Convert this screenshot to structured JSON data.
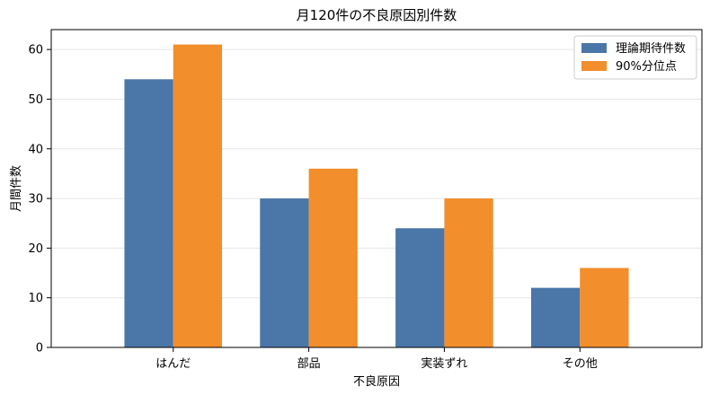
{
  "chart_data": {
    "type": "bar",
    "title": "月120件の不良原因別件数",
    "xlabel": "不良原因",
    "ylabel": "月間件数",
    "categories": [
      "はんだ",
      "部品",
      "実装ずれ",
      "その他"
    ],
    "series": [
      {
        "name": "理論期待件数",
        "values": [
          54,
          30,
          24,
          12
        ],
        "color": "#4a76a8"
      },
      {
        "name": "90%分位点",
        "values": [
          61,
          36,
          30,
          16
        ],
        "color": "#f28e2b"
      }
    ],
    "ylim": [
      0,
      64
    ],
    "yticks": [
      0,
      10,
      20,
      30,
      40,
      50,
      60
    ],
    "grid": "horizontal",
    "legend_position": "top-right"
  }
}
